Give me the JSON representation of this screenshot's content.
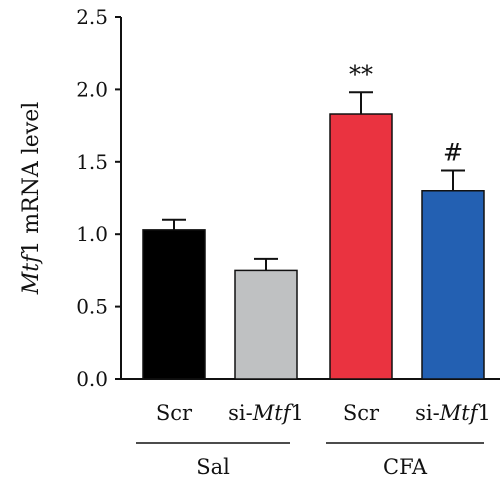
{
  "chart_data": {
    "type": "bar",
    "ylabel": {
      "italic": "Mtf",
      "rest": "1 mRNA level"
    },
    "ylim": [
      0,
      2.5
    ],
    "yticks": [
      "0.0",
      "0.5",
      "1.0",
      "1.5",
      "2.0",
      "2.5"
    ],
    "grid": false,
    "bars": [
      {
        "label_plain": "Scr",
        "label_italic": "",
        "label_after": "",
        "group": "Sal",
        "value": 1.03,
        "error": 0.07,
        "color": "#000000",
        "annotation": ""
      },
      {
        "label_plain": "si-",
        "label_italic": "Mtf",
        "label_after": "1",
        "group": "Sal",
        "value": 0.75,
        "error": 0.08,
        "color": "#bfc1c2",
        "annotation": ""
      },
      {
        "label_plain": "Scr",
        "label_italic": "",
        "label_after": "",
        "group": "CFA",
        "value": 1.83,
        "error": 0.15,
        "color": "#ea3340",
        "annotation": "**"
      },
      {
        "label_plain": "si-",
        "label_italic": "Mtf",
        "label_after": "1",
        "group": "CFA",
        "value": 1.3,
        "error": 0.14,
        "color": "#2360b2",
        "annotation": "#"
      }
    ],
    "groups": [
      "Sal",
      "CFA"
    ]
  }
}
